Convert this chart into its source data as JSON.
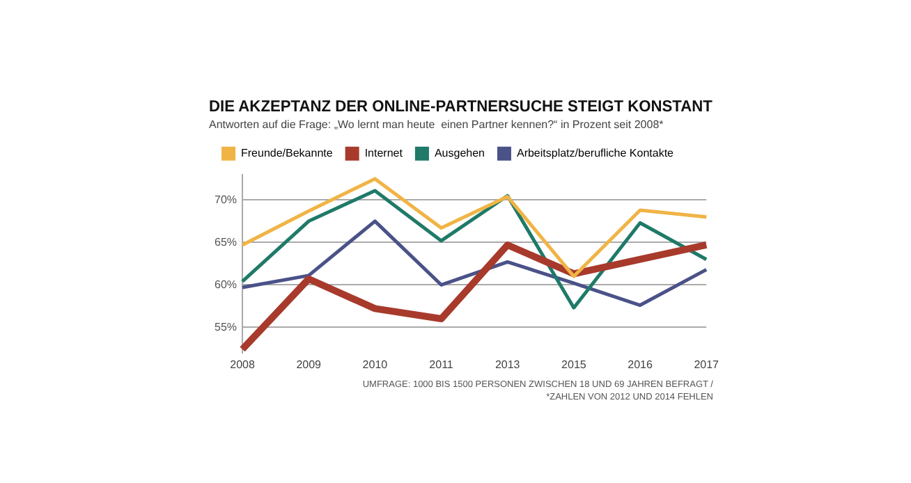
{
  "chart_data": {
    "type": "line",
    "title": "DIE AKZEPTANZ DER ONLINE-PARTNERSUCHE STEIGT KONSTANT",
    "subtitle": "Antworten auf die Frage: „Wo lernt man heute  einen Partner kennen?“ in Prozent seit 2008*",
    "categories": [
      "2008",
      "2009",
      "2010",
      "2011",
      "2013",
      "2015",
      "2016",
      "2017"
    ],
    "series": [
      {
        "name": "Freunde/Bekannte",
        "color": "#f0b445",
        "values": [
          64.7,
          68.7,
          72.5,
          66.7,
          70.4,
          61.0,
          68.8,
          68.0
        ]
      },
      {
        "name": "Internet",
        "color": "#a83a2c",
        "values": [
          52.4,
          60.7,
          57.2,
          56.0,
          64.7,
          61.3,
          63.0,
          64.7
        ]
      },
      {
        "name": "Ausgehen",
        "color": "#1f7a68",
        "values": [
          60.4,
          67.5,
          71.1,
          65.2,
          70.5,
          57.3,
          67.3,
          63.0
        ]
      },
      {
        "name": "Arbeitsplatz/berufliche Kontakte",
        "color": "#4a5288",
        "values": [
          59.7,
          61.1,
          67.5,
          60.0,
          62.7,
          60.2,
          57.6,
          61.8
        ]
      }
    ],
    "ylim": [
      52,
      73
    ],
    "yticks": [
      {
        "value": 55,
        "label": "55%"
      },
      {
        "value": 60,
        "label": "60%"
      },
      {
        "value": 65,
        "label": "65%"
      },
      {
        "value": 70,
        "label": "70%"
      }
    ],
    "grid": "y",
    "legend": "top left",
    "marker": "none",
    "line_style": "solid",
    "annotations": [
      "UMFRAGE: 1000 BIS 1500 PERSONEN ZWISCHEN 18 UND 69 JAHREN BEFRAGT / *ZAHLEN VON 2012 UND 2014 FEHLEN"
    ]
  }
}
